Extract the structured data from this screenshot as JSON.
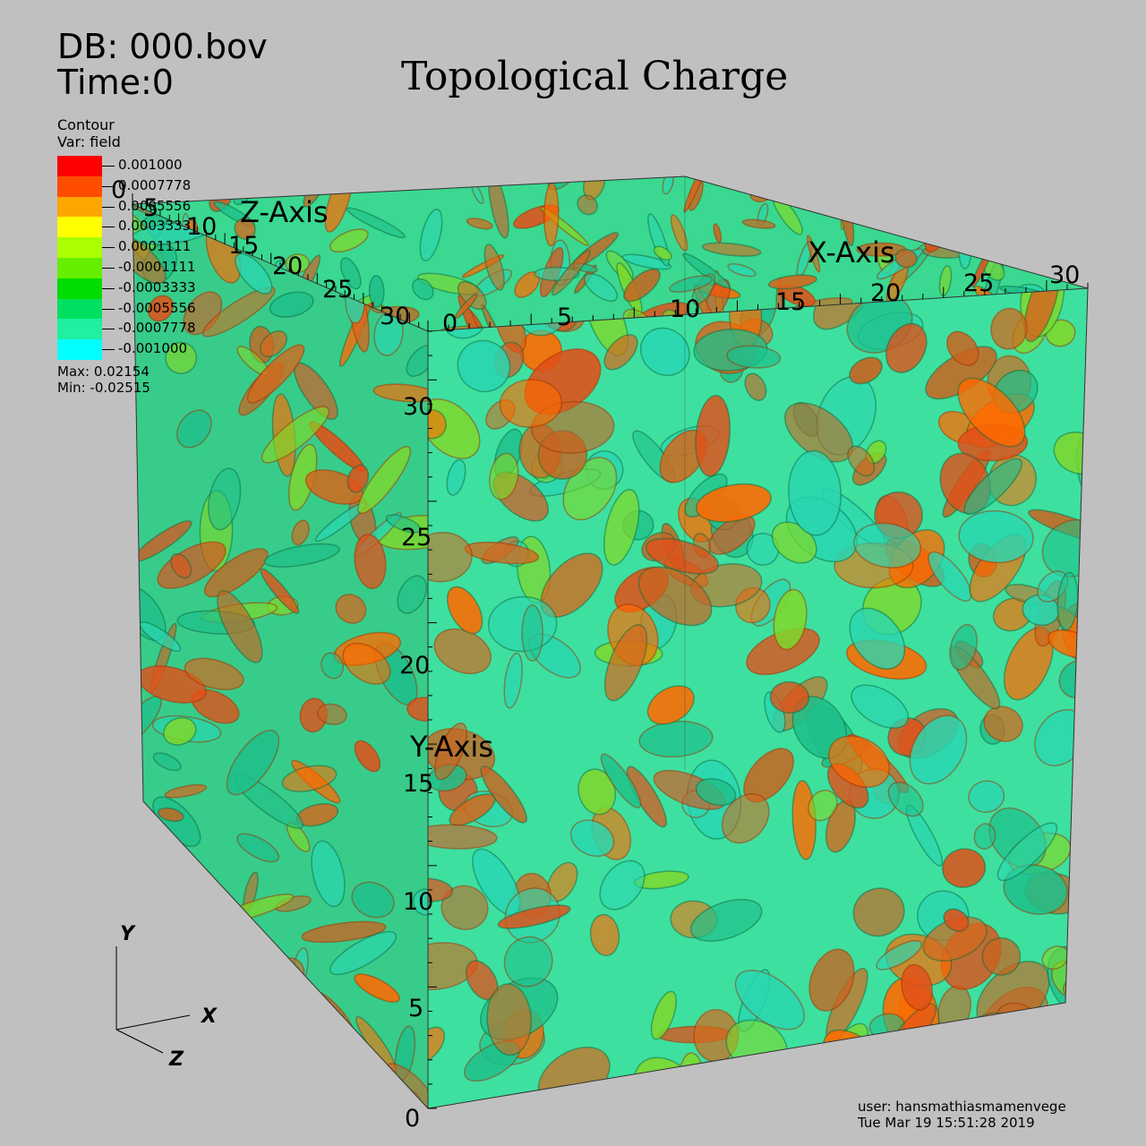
{
  "header": {
    "db_line": "DB: 000.bov",
    "time_line": "Time:0"
  },
  "title": "Topological Charge",
  "legend": {
    "plot_type": "Contour",
    "var_line": "Var: field",
    "levels": [
      {
        "value": "0.001000",
        "color": "#ff0000"
      },
      {
        "value": "0.0007778",
        "color": "#ff4d00"
      },
      {
        "value": "0.0005556",
        "color": "#ffa500"
      },
      {
        "value": "0.0003333",
        "color": "#ffff00"
      },
      {
        "value": "0.0001111",
        "color": "#aaff00"
      },
      {
        "value": "-0.0001111",
        "color": "#66ee00"
      },
      {
        "value": "-0.0003333",
        "color": "#00dd00"
      },
      {
        "value": "-0.0005556",
        "color": "#00e060"
      },
      {
        "value": "-0.0007778",
        "color": "#20f0a0"
      },
      {
        "value": "-0.001000",
        "color": "#00ffff"
      }
    ],
    "max_line": "Max:  0.02154",
    "min_line": "Min: -0.02515"
  },
  "axes": {
    "x_title": "X-Axis",
    "y_title": "Y-Axis",
    "z_title": "Z-Axis",
    "x_ticks": [
      "0",
      "5",
      "10",
      "15",
      "20",
      "25",
      "30"
    ],
    "y_ticks": [
      "0",
      "5",
      "10",
      "15",
      "20",
      "25",
      "30"
    ],
    "z_ticks": [
      "0",
      "5",
      "10",
      "15",
      "20",
      "25",
      "30"
    ]
  },
  "triad": {
    "x": "X",
    "y": "Y",
    "z": "Z"
  },
  "footer": {
    "user_line": "user: hansmathiasmamenvege",
    "date_line": "Tue Mar 19 15:51:28 2019"
  },
  "colors": {
    "background": "#c0c0c0",
    "surface_orange": "#d2691e",
    "surface_green": "#3ee0a0"
  }
}
